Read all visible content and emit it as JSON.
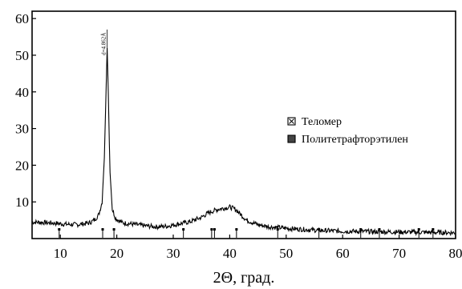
{
  "chart_data": {
    "type": "line",
    "xlabel": "2Θ, град.",
    "ylabel": "",
    "xlim": [
      5,
      80
    ],
    "ylim": [
      0,
      62
    ],
    "x_ticks": [
      10,
      20,
      30,
      40,
      50,
      60,
      70,
      80
    ],
    "y_ticks": [
      10,
      20,
      30,
      40,
      50,
      60
    ],
    "grid": false,
    "legend_position": "center-right",
    "legend": [
      {
        "label": "Теломер",
        "marker": "square-x"
      },
      {
        "label": "Политетрафторэтилен",
        "marker": "square-filled"
      }
    ],
    "peak_annotation": {
      "label": "d=4.862Å",
      "x": 18.3,
      "y": 57
    },
    "series": [
      {
        "color": "#000000",
        "x": [
          5,
          7,
          9,
          11,
          13,
          15,
          16,
          16.8,
          17.4,
          17.8,
          18.1,
          18.3,
          18.5,
          18.8,
          19.2,
          19.8,
          21,
          23,
          25,
          27,
          29,
          31,
          33,
          35,
          36,
          37,
          38,
          39,
          40,
          41,
          42,
          43,
          45,
          47,
          50,
          55,
          60,
          65,
          70,
          75,
          80
        ],
        "values": [
          4.5,
          4.4,
          4.2,
          3.9,
          3.8,
          4.2,
          5.0,
          6.5,
          10,
          22,
          40,
          52,
          40,
          18,
          8,
          5.5,
          4.3,
          3.9,
          3.5,
          3.2,
          3.4,
          4.0,
          4.6,
          5.8,
          6.8,
          7.5,
          8.0,
          8.3,
          8.6,
          8.0,
          6.5,
          5.0,
          3.8,
          3.2,
          2.8,
          2.3,
          2.0,
          1.9,
          1.8,
          1.7,
          1.6
        ]
      }
    ],
    "reference_ticks_x": [
      9.8,
      17.5,
      19.5,
      31.8,
      36.8,
      37.3,
      41.2,
      48.5,
      55.8,
      63.2,
      66.5,
      73.5,
      76
    ]
  }
}
